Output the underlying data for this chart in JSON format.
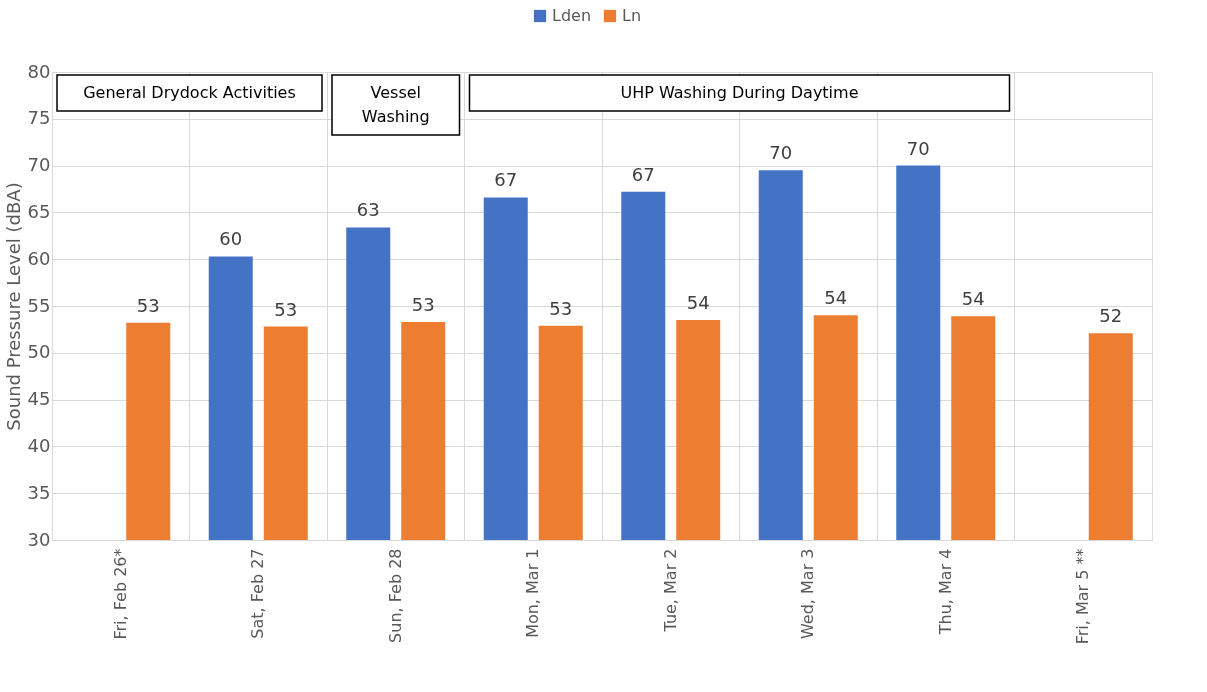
{
  "chart_data": {
    "type": "bar",
    "ylabel": "Sound Pressure Level (dBA)",
    "categories": [
      "Fri, Feb 26*",
      "Sat, Feb 27",
      "Sun, Feb 28",
      "Mon, Mar 1",
      "Tue, Mar 2",
      "Wed, Mar 3",
      "Thu, Mar 4",
      "Fri, Mar 5 **"
    ],
    "series": [
      {
        "name": "Lden",
        "color": "#4472c4",
        "values": [
          null,
          60.3,
          63.4,
          66.6,
          67.2,
          69.5,
          70.0,
          null
        ],
        "value_labels": [
          null,
          "60",
          "63",
          "67",
          "67",
          "70",
          "70",
          null
        ]
      },
      {
        "name": "Ln",
        "color": "#ed7d31",
        "values": [
          53.2,
          52.8,
          53.3,
          52.9,
          53.5,
          54.0,
          53.9,
          52.1
        ],
        "value_labels": [
          "53",
          "53",
          "53",
          "53",
          "54",
          "54",
          "54",
          "52"
        ]
      }
    ],
    "ylim": [
      30,
      80
    ],
    "yticks": [
      30,
      35,
      40,
      45,
      50,
      55,
      60,
      65,
      70,
      75,
      80
    ],
    "bands": [
      {
        "axis": "x",
        "from": "Fri, Feb 26*",
        "to": "Sat, Feb 27",
        "label": "General Drydock Activities",
        "color": "#ffffff"
      },
      {
        "axis": "x",
        "from": "Sun, Feb 28",
        "to": "Sun, Feb 28",
        "label": "Vessel Washing",
        "color": "#ffffff"
      },
      {
        "axis": "x",
        "from": "Mon, Mar 1",
        "to": "Thu, Mar 4",
        "label": "UHP Washing During Daytime",
        "color": "#ffffff"
      }
    ],
    "grid": true,
    "legend": "top"
  }
}
